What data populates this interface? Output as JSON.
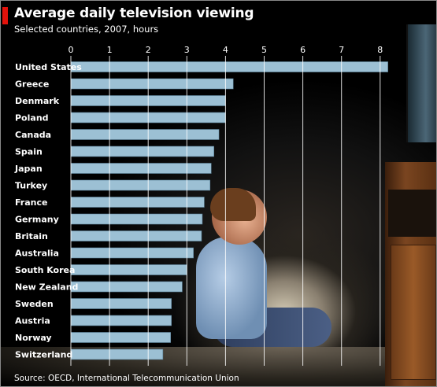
{
  "chart_data": {
    "type": "bar",
    "orientation": "horizontal",
    "title": "Average daily television viewing",
    "subtitle": "Selected countries, 2007, hours",
    "source": "Source: OECD, International Telecommunication Union",
    "categories": [
      "United States",
      "Greece",
      "Denmark",
      "Poland",
      "Canada",
      "Spain",
      "Japan",
      "Turkey",
      "France",
      "Germany",
      "Britain",
      "Australia",
      "South Korea",
      "New Zealand",
      "Sweden",
      "Austria",
      "Norway",
      "Switzerland"
    ],
    "values": [
      8.2,
      4.2,
      4.0,
      4.0,
      3.83,
      3.7,
      3.63,
      3.6,
      3.45,
      3.4,
      3.38,
      3.17,
      3.0,
      2.88,
      2.6,
      2.6,
      2.58,
      2.38
    ],
    "xlim": [
      0,
      8
    ],
    "xticks": [
      "0",
      "1",
      "2",
      "3",
      "4",
      "5",
      "6",
      "7",
      "8"
    ],
    "grid": true,
    "colors": {
      "bar": "#9cc0d4",
      "bar_edge": "#5a8098",
      "text": "#ffffff",
      "accent": "#e3120b"
    }
  }
}
